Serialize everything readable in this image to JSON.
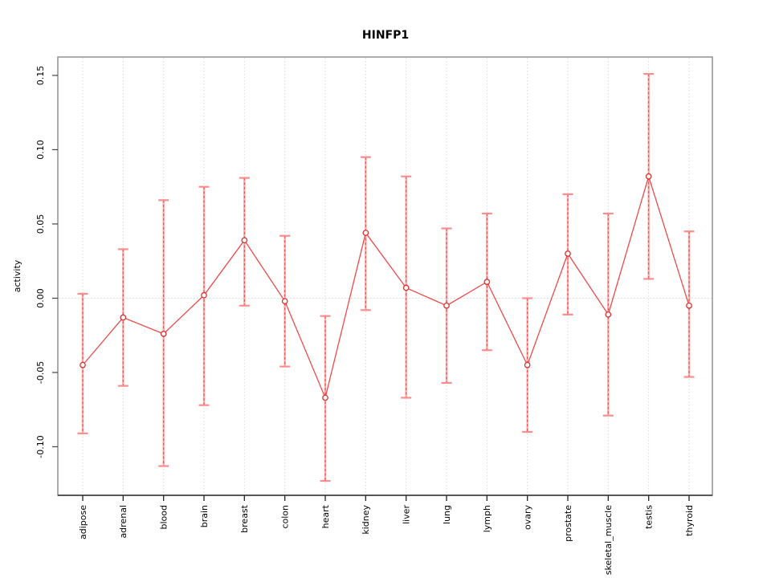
{
  "title": "HINFP1",
  "chart_data": {
    "type": "line",
    "title": "HINFP1",
    "xlabel": "",
    "ylabel": "activity",
    "categories": [
      "adipose",
      "adrenal",
      "blood",
      "brain",
      "breast",
      "colon",
      "heart",
      "kidney",
      "liver",
      "lung",
      "lymph",
      "ovary",
      "prostate",
      "skeletal_muscle",
      "testis",
      "thyroid"
    ],
    "series": [
      {
        "name": "activity",
        "values": [
          -0.045,
          -0.013,
          -0.024,
          0.002,
          0.039,
          -0.002,
          -0.067,
          0.044,
          0.007,
          -0.005,
          0.011,
          -0.045,
          0.03,
          -0.011,
          0.082,
          -0.005
        ],
        "error_high": [
          0.003,
          0.033,
          0.066,
          0.075,
          0.081,
          0.042,
          -0.012,
          0.095,
          0.082,
          0.047,
          0.057,
          0.0,
          0.07,
          0.057,
          0.151,
          0.045
        ],
        "error_low": [
          -0.091,
          -0.059,
          -0.113,
          -0.072,
          -0.005,
          -0.046,
          -0.123,
          -0.008,
          -0.067,
          -0.057,
          -0.035,
          -0.09,
          -0.011,
          -0.079,
          0.013,
          -0.053
        ]
      }
    ],
    "yticks": [
      {
        "label": "-0.10",
        "value": -0.1
      },
      {
        "label": "-0.05",
        "value": -0.05
      },
      {
        "label": "0.00",
        "value": 0.0
      },
      {
        "label": "0.05",
        "value": 0.05
      },
      {
        "label": "0.10",
        "value": 0.1
      },
      {
        "label": "0.15",
        "value": 0.15
      }
    ],
    "ylim": [
      -0.1327,
      0.1624
    ],
    "grid": {
      "vertical": "dotted at every category",
      "horizontal": "dotted at zero only"
    },
    "legend": "none",
    "colors": {
      "series_line": "#ef4a4a",
      "marker_stroke": "#dd2f2f",
      "errorbar_solid": "#ffaaaa",
      "errorbar_dash": "#e84040",
      "errorbar_cap": "#ff8c8c",
      "gridline": "#d9d9d9",
      "plot_border": "#898989",
      "axis_line": "#2f2f2f",
      "text": "#000000"
    }
  }
}
